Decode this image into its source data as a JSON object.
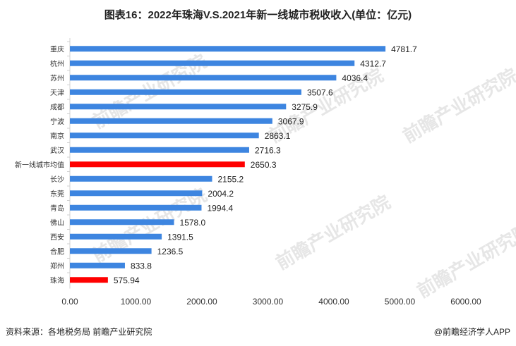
{
  "chart_data": {
    "type": "bar",
    "orientation": "horizontal",
    "title": "图表16：2022年珠海V.S.2021年新一线城市税收收入(单位：亿元)",
    "categories": [
      "重庆",
      "杭州",
      "苏州",
      "天津",
      "成都",
      "宁波",
      "南京",
      "武汉",
      "新一线城市均值",
      "长沙",
      "东莞",
      "青岛",
      "佛山",
      "西安",
      "合肥",
      "郑州",
      "珠海"
    ],
    "values": [
      4781.7,
      4312.7,
      4036.4,
      3507.6,
      3275.9,
      3067.9,
      2863.1,
      2716.3,
      2650.3,
      2155.2,
      2004.2,
      1994.4,
      1578.0,
      1391.5,
      1236.5,
      833.8,
      575.94
    ],
    "value_labels": [
      "4781.7",
      "4312.7",
      "4036.4",
      "3507.6",
      "3275.9",
      "3067.9",
      "2863.1",
      "2716.3",
      "2650.3",
      "2155.2",
      "2004.2",
      "1994.4",
      "1578.0",
      "1391.5",
      "1236.5",
      "833.8",
      "575.94"
    ],
    "highlight": [
      "新一线城市均值",
      "珠海"
    ],
    "xlim": [
      0,
      6000
    ],
    "xticks": [
      "0.00",
      "1000.00",
      "2000.00",
      "3000.00",
      "4000.00",
      "5000.00",
      "6000.00"
    ],
    "grid": false,
    "colors": {
      "bar": "#3d85e0",
      "highlight": "#ff0000"
    }
  },
  "footer": {
    "source": "资料来源：各地税务局 前瞻产业研究院",
    "brand": "@前瞻经济学人APP"
  },
  "watermark": "前瞻产业研究院"
}
